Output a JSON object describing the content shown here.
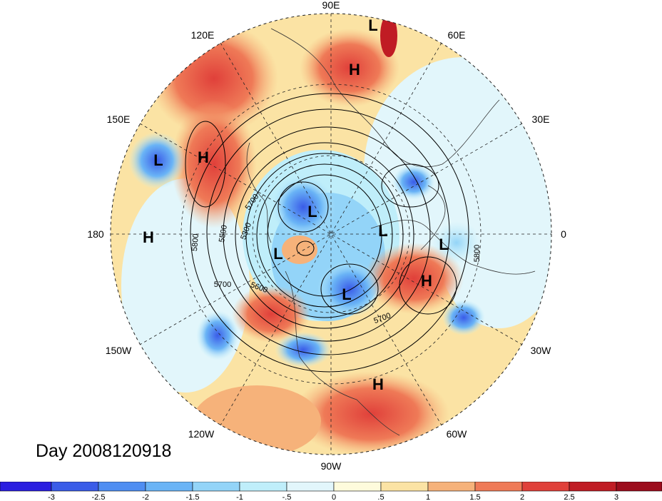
{
  "title": "Day 2008120918",
  "longitude_labels": [
    "90E",
    "60E",
    "30E",
    "0",
    "30W",
    "60W",
    "90W",
    "120W",
    "150W",
    "180",
    "150E",
    "120E"
  ],
  "pressure_systems": [
    {
      "type": "L",
      "lon": "Scandinavia"
    },
    {
      "type": "H",
      "lon": "Central Asia"
    },
    {
      "type": "L",
      "lon": "NE Pacific"
    },
    {
      "type": "H",
      "lon": "Bering"
    },
    {
      "type": "H",
      "lon": "Central Pacific"
    },
    {
      "type": "L",
      "lon": "Siberia Arctic"
    },
    {
      "type": "L",
      "lon": "Europe"
    },
    {
      "type": "L",
      "lon": "N Atlantic"
    },
    {
      "type": "L",
      "lon": "Beaufort"
    },
    {
      "type": "L",
      "lon": "Canada"
    },
    {
      "type": "H",
      "lon": "Atlantic"
    },
    {
      "type": "H",
      "lon": "Gulf of Mexico"
    }
  ],
  "contour_labels": [
    "5700",
    "5800",
    "5500",
    "5300",
    "5700",
    "5600",
    "5700",
    "5800"
  ],
  "colorbar": {
    "tick_labels": [
      "-3",
      "-2.5",
      "-2",
      "-1.5",
      "-1",
      "-.5",
      "0",
      ".5",
      "1",
      "1.5",
      "2",
      "2.5",
      "3"
    ],
    "colors": [
      "#2a1ee0",
      "#3a5ce8",
      "#4f8ef2",
      "#6ab4f6",
      "#93d4f8",
      "#bfeefa",
      "#e2f6fb",
      "#fefbdc",
      "#fbe3a4",
      "#f6b27a",
      "#ef7a57",
      "#e0403a",
      "#c01c24",
      "#9c0c1c"
    ]
  }
}
